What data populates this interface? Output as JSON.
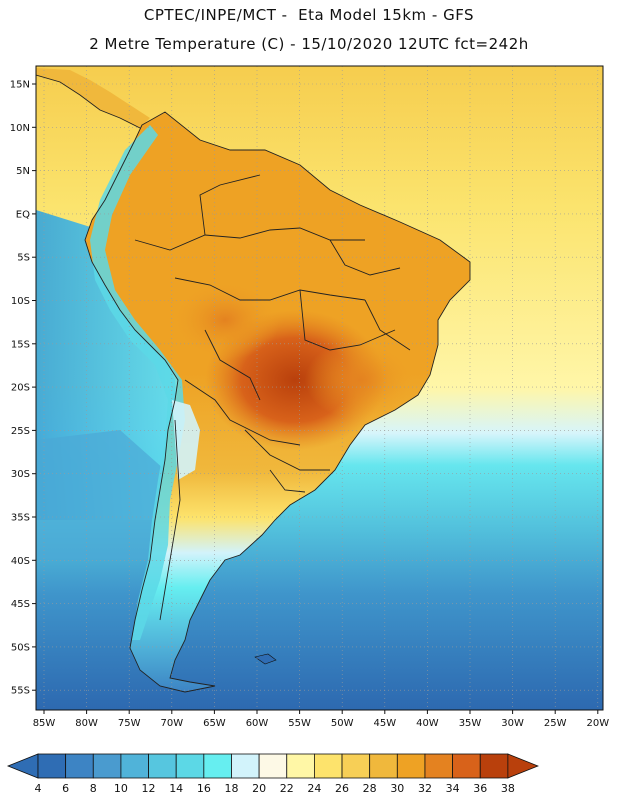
{
  "header": {
    "line1": "CPTEC/INPE/MCT -  Eta Model 15km - GFS",
    "line2": "2 Metre Temperature (C) - 15/10/2020 12UTC fct=242h"
  },
  "lat_ticks": [
    "15N",
    "10N",
    "5N",
    "EQ",
    "5S",
    "10S",
    "15S",
    "20S",
    "25S",
    "30S",
    "35S",
    "40S",
    "45S",
    "50S",
    "55S"
  ],
  "lon_ticks": [
    "85W",
    "80W",
    "75W",
    "70W",
    "65W",
    "60W",
    "55W",
    "50W",
    "45W",
    "40W",
    "35W",
    "30W",
    "25W",
    "20W"
  ],
  "colorbar": {
    "labels": [
      "4",
      "6",
      "8",
      "10",
      "12",
      "14",
      "16",
      "18",
      "20",
      "22",
      "24",
      "26",
      "28",
      "30",
      "32",
      "34",
      "36",
      "38"
    ],
    "colors": [
      "#2f6db4",
      "#3d84c4",
      "#4a9bcf",
      "#50b3d9",
      "#56c6df",
      "#5cd8e6",
      "#66eef0",
      "#d2f3fb",
      "#fdf9e6",
      "#fff7a6",
      "#fde36c",
      "#f7cf56",
      "#f0b83c",
      "#eea224",
      "#e48220",
      "#d8621a",
      "#b9400c"
    ],
    "end_left": "#2f6db4",
    "end_right": "#b9400c"
  }
}
